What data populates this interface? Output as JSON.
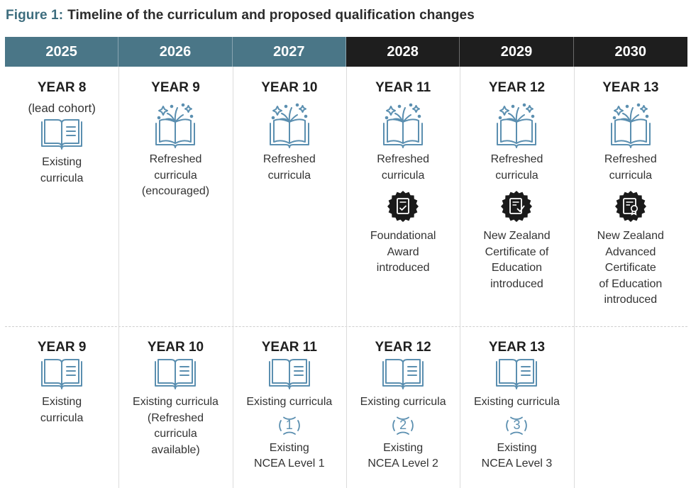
{
  "figure": {
    "label": "Figure 1:",
    "title": "Timeline of the curriculum and proposed qualification changes"
  },
  "years": [
    {
      "label": "2025",
      "style": "teal"
    },
    {
      "label": "2026",
      "style": "teal"
    },
    {
      "label": "2027",
      "style": "teal"
    },
    {
      "label": "2028",
      "style": "dark"
    },
    {
      "label": "2029",
      "style": "dark"
    },
    {
      "label": "2030",
      "style": "dark"
    }
  ],
  "colors": {
    "teal_header": "#4a7687",
    "dark_header": "#1e1e1e",
    "icon_blue": "#5b8fb0",
    "badge_black": "#1a1a1a",
    "title_accent": "#3d6d7e"
  },
  "row1": [
    {
      "year": "YEAR 8",
      "sub": "(lead cohort)",
      "icon": "book-icon",
      "text": [
        "Existing",
        "curricula"
      ]
    },
    {
      "year": "YEAR 9",
      "icon": "sparkle-book-icon",
      "text": [
        "Refreshed",
        "curricula",
        "(encouraged)"
      ]
    },
    {
      "year": "YEAR 10",
      "icon": "sparkle-book-icon",
      "text": [
        "Refreshed",
        "curricula"
      ]
    },
    {
      "year": "YEAR 11",
      "icon": "sparkle-book-icon",
      "text": [
        "Refreshed",
        "curricula"
      ],
      "badge": "document-badge-icon",
      "qual_bold": [
        "Foundational",
        "Award"
      ],
      "qual_note": "introduced"
    },
    {
      "year": "YEAR 12",
      "icon": "sparkle-book-icon",
      "text": [
        "Refreshed",
        "curricula"
      ],
      "badge": "certificate-badge-icon",
      "qual_bold": [
        "New Zealand",
        "Certificate of",
        "Education"
      ],
      "qual_note": "introduced"
    },
    {
      "year": "YEAR 13",
      "icon": "sparkle-book-icon",
      "text": [
        "Refreshed",
        "curricula"
      ],
      "badge": "award-certificate-badge-icon",
      "qual_bold": [
        "New Zealand",
        "Advanced",
        "Certificate",
        "of Education"
      ],
      "qual_note": "introduced"
    }
  ],
  "row2": [
    {
      "year": "YEAR 9",
      "icon": "book-icon",
      "text": [
        "Existing",
        "curricula"
      ]
    },
    {
      "year": "YEAR 10",
      "icon": "book-icon",
      "text": [
        "Existing curricula",
        "(Refreshed",
        "curricula",
        "available)"
      ]
    },
    {
      "year": "YEAR 11",
      "icon": "book-icon",
      "text": [
        "Existing curricula"
      ],
      "level": "1",
      "level_text": [
        "Existing",
        "NCEA Level 1"
      ]
    },
    {
      "year": "YEAR 12",
      "icon": "book-icon",
      "text": [
        "Existing curricula"
      ],
      "level": "2",
      "level_text": [
        "Existing",
        "NCEA Level 2"
      ]
    },
    {
      "year": "YEAR 13",
      "icon": "book-icon",
      "text": [
        "Existing curricula"
      ],
      "level": "3",
      "level_text": [
        "Existing",
        "NCEA Level 3"
      ]
    }
  ]
}
